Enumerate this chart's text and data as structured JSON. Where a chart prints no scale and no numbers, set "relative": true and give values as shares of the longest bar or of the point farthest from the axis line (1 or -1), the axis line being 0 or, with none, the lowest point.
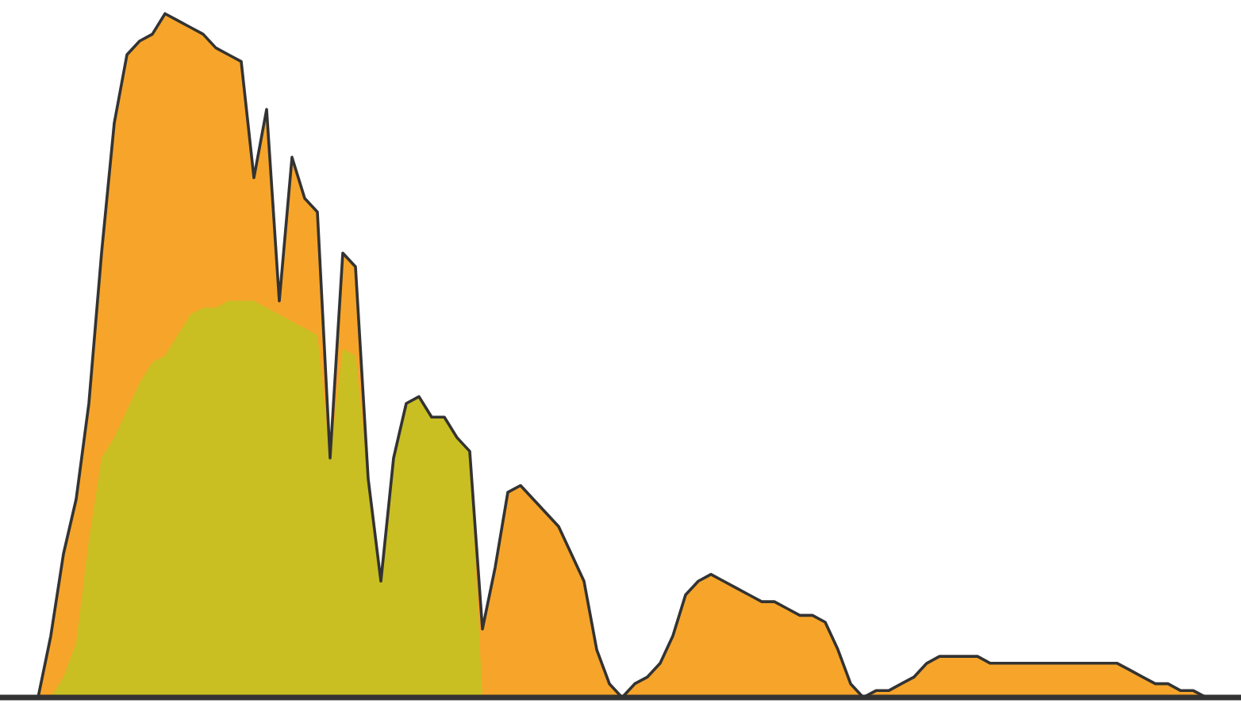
{
  "chart_data": {
    "type": "area",
    "relative": true,
    "categories": [
      null,
      null,
      null,
      null,
      null,
      null,
      null,
      null,
      null,
      null,
      null,
      null,
      null,
      null,
      null,
      null,
      null,
      null,
      null,
      null,
      null,
      null,
      null,
      null,
      null,
      null,
      null,
      null,
      null,
      null,
      null,
      null,
      null,
      null,
      null,
      null,
      null,
      null,
      null,
      null,
      null,
      null,
      null,
      null,
      null,
      null,
      null,
      null,
      null,
      null,
      null,
      null,
      null,
      null,
      null,
      null,
      null,
      null,
      null,
      null,
      null,
      null,
      null,
      null,
      null,
      null,
      null,
      null,
      null,
      null,
      null,
      null,
      null,
      null,
      null,
      null,
      null,
      null,
      null,
      null,
      null,
      null,
      null,
      null,
      null,
      null,
      null,
      null,
      null,
      null,
      null,
      null,
      null,
      null,
      null
    ],
    "series": [
      {
        "color": "#f6a52a",
        "values": [
          0,
          0.09,
          0.21,
          0.29,
          0.43,
          0.65,
          0.84,
          0.94,
          0.96,
          0.97,
          1,
          0.99,
          0.98,
          0.97,
          0.95,
          0.94,
          0.93,
          0.76,
          0.86,
          0.58,
          0.79,
          0.73,
          0.71,
          0.35,
          0.65,
          0.63,
          0.32,
          0.17,
          0.35,
          0.43,
          0.44,
          0.41,
          0.41,
          0.38,
          0.36,
          0.1,
          0.19,
          0.3,
          0.31,
          0.29,
          0.27,
          0.25,
          0.21,
          0.17,
          0.07,
          0.02,
          0,
          0.02,
          0.03,
          0.05,
          0.09,
          0.15,
          0.17,
          0.18,
          0.17,
          0.16,
          0.15,
          0.14,
          0.14,
          0.13,
          0.12,
          0.12,
          0.11,
          0.07,
          0.02,
          0,
          0.01,
          0.01,
          0.02,
          0.03,
          0.05,
          0.06,
          0.06,
          0.06,
          0.06,
          0.05,
          0.05,
          0.05,
          0.05,
          0.05,
          0.05,
          0.05,
          0.05,
          0.05,
          0.05,
          0.05,
          0.04,
          0.03,
          0.02,
          0.02,
          0.01,
          0.01,
          0,
          0,
          0
        ]
      },
      {
        "color": "#c9bf22",
        "values": [
          0,
          0,
          0.03,
          0.08,
          0.23,
          0.35,
          0.38,
          0.42,
          0.46,
          0.49,
          0.5,
          0.53,
          0.56,
          0.57,
          0.57,
          0.58,
          0.58,
          0.58,
          0.57,
          0.56,
          0.55,
          0.54,
          0.53,
          0.35,
          0.51,
          0.5,
          0.32,
          0.17,
          0.35,
          0.43,
          0.44,
          0.41,
          0.41,
          0.38,
          0.36,
          0,
          0,
          0,
          0,
          0,
          0,
          0,
          0,
          0,
          0,
          0,
          0,
          0,
          0,
          0,
          0,
          0,
          0,
          0,
          0,
          0,
          0,
          0,
          0,
          0,
          0,
          0,
          0,
          0,
          0,
          0,
          0,
          0,
          0,
          0,
          0,
          0,
          0,
          0,
          0,
          0,
          0,
          0,
          0,
          0,
          0,
          0,
          0,
          0,
          0,
          0,
          0,
          0,
          0,
          0,
          0,
          0,
          0,
          0,
          0
        ]
      }
    ]
  }
}
